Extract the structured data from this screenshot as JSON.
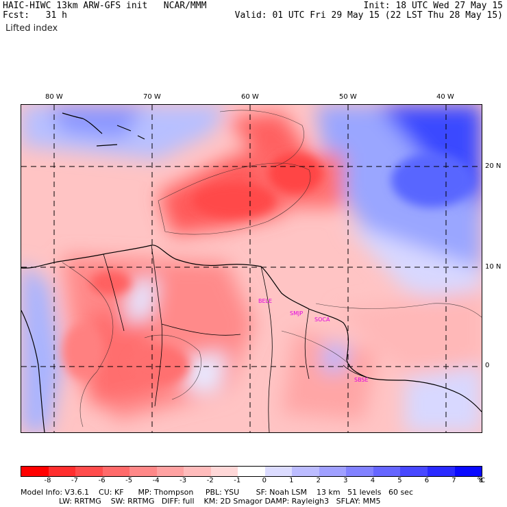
{
  "header": {
    "left_line1": "HAIC-HIWC 13km ARW-GFS init   NCAR/MMM",
    "left_line2": "Fcst:   31 h",
    "right_line1": "Init: 18 UTC Wed 27 May 15",
    "right_line2": "Valid: 01 UTC Fri 29 May 15 (22 LST Thu 28 May 15)",
    "field_name": "Lifted index"
  },
  "longitude_labels": [
    "80 W",
    "70 W",
    "60 W",
    "50 W",
    "40 W"
  ],
  "latitude_labels": [
    "20 N",
    "10 N",
    "0"
  ],
  "stations": [
    {
      "name": "BELE"
    },
    {
      "name": "SMJP"
    },
    {
      "name": "SOCA"
    },
    {
      "name": "SBSE"
    }
  ],
  "colorbar": {
    "unit": "°C",
    "tick_labels": [
      "-8",
      "-7",
      "-6",
      "-5",
      "-4",
      "-3",
      "-2",
      "-1",
      "0",
      "1",
      "2",
      "3",
      "4",
      "5",
      "6",
      "7",
      "8"
    ],
    "colors": [
      "#ff0000",
      "#ff2e2e",
      "#ff4c4c",
      "#ff6a6a",
      "#ff8888",
      "#ffa2a2",
      "#ffbcbc",
      "#ffd8d8",
      "#ffffff",
      "#dcdcff",
      "#bcbcff",
      "#a0a0ff",
      "#8282ff",
      "#6666ff",
      "#4848ff",
      "#2a2aff",
      "#0a0aff"
    ]
  },
  "footer": {
    "line1": "Model Info: V3.6.1    CU: KF      MP: Thompson     PBL: YSU       SF: Noah LSM    13 km   51 levels   60 sec",
    "line2": "                LW: RRTMG    SW: RRTMG   DIFF: full    KM: 2D Smagor DAMP: Rayleigh3   SFLAY: MM5"
  }
}
